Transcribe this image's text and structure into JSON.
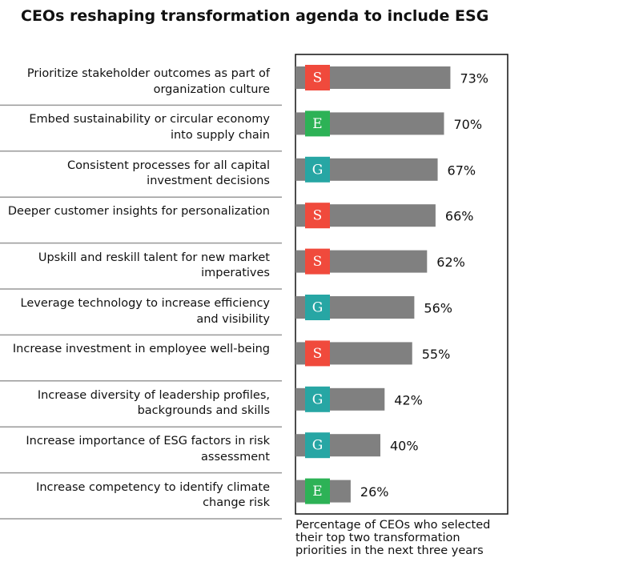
{
  "chart_data": {
    "type": "bar",
    "orientation": "horizontal",
    "title": "CEOs reshaping transformation agenda to include ESG",
    "categories": [
      "Prioritize stakeholder outcomes as part of organization culture",
      "Embed sustainability or circular economy into supply chain",
      "Consistent processes for all capital investment decisions",
      "Deeper customer insights for personalization",
      "Upskill and reskill talent for new market imperatives",
      "Leverage technology to increase efficiency and visibility",
      "Increase investment in employee well-being",
      "Increase diversity of leadership profiles, backgrounds and skills",
      "Increase importance of ESG factors in risk assessment",
      "Increase competency to identify climate change risk"
    ],
    "tags": [
      "S",
      "E",
      "G",
      "S",
      "S",
      "G",
      "S",
      "G",
      "G",
      "E"
    ],
    "tag_colors": {
      "S": "#f04a3c",
      "E": "#2db256",
      "G": "#27a6a4"
    },
    "values": [
      73,
      70,
      67,
      66,
      62,
      56,
      55,
      42,
      40,
      26
    ],
    "value_labels": [
      "73%",
      "70%",
      "67%",
      "66%",
      "62%",
      "56%",
      "55%",
      "42%",
      "40%",
      "26%"
    ],
    "color": "#808080",
    "xlim": [
      0,
      100
    ],
    "note": "Percentage of CEOs who selected their top two transformation priorities in the next three years"
  }
}
